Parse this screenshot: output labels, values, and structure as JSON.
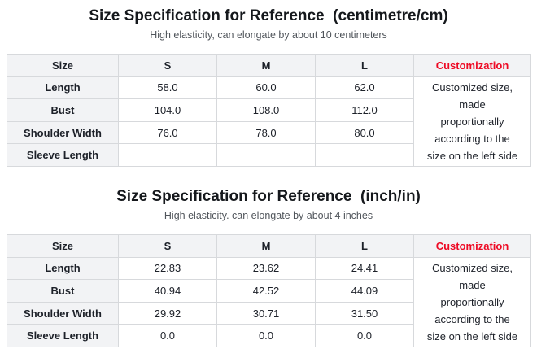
{
  "colors": {
    "accent_red": "#ee0a24",
    "header_cell_bg": "#f2f3f5",
    "table_border": "#d7d9dc",
    "text": "#1d2129",
    "subtitle_text": "#50555b",
    "page_bg": "#ffffff"
  },
  "sections": [
    {
      "title": "Size Specification for Reference  (centimetre/cm)",
      "subtitle": "High elasticity, can elongate by about 10 centimeters",
      "table": {
        "columns": [
          "Size",
          "S",
          "M",
          "L",
          "Customization"
        ],
        "rows": [
          {
            "label": "Length",
            "values": [
              "58.0",
              "60.0",
              "62.0"
            ]
          },
          {
            "label": "Bust",
            "values": [
              "104.0",
              "108.0",
              "112.0"
            ]
          },
          {
            "label": "Shoulder Width",
            "values": [
              "76.0",
              "78.0",
              "80.0"
            ]
          },
          {
            "label": "Sleeve Length",
            "values": [
              "",
              "",
              ""
            ]
          }
        ],
        "note": "Customized size, made proportionally according to the size on the left side"
      }
    },
    {
      "title": "Size Specification for Reference  (inch/in)",
      "subtitle": "High elasticity. can elongate by about 4 inches",
      "table": {
        "columns": [
          "Size",
          "S",
          "M",
          "L",
          "Customization"
        ],
        "rows": [
          {
            "label": "Length",
            "values": [
              "22.83",
              "23.62",
              "24.41"
            ]
          },
          {
            "label": "Bust",
            "values": [
              "40.94",
              "42.52",
              "44.09"
            ]
          },
          {
            "label": "Shoulder Width",
            "values": [
              "29.92",
              "30.71",
              "31.50"
            ]
          },
          {
            "label": "Sleeve Length",
            "values": [
              "0.0",
              "0.0",
              "0.0"
            ]
          }
        ],
        "note": "Customized size, made proportionally according to the size on the left side"
      }
    }
  ]
}
